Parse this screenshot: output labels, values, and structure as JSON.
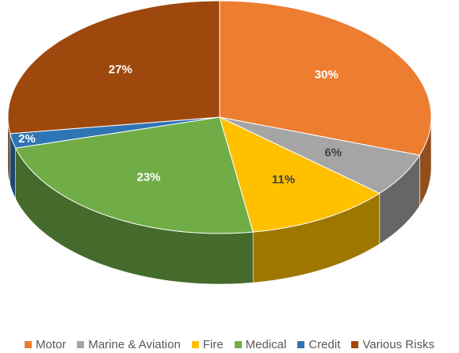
{
  "chart_data": {
    "type": "pie3d",
    "categories": [
      "Motor",
      "Marine & Aviation",
      "Fire",
      "Medical",
      "Credit",
      "Various Risks"
    ],
    "values": [
      30,
      6,
      11,
      23,
      2,
      27
    ],
    "value_labels": [
      "30%",
      "6%",
      "11%",
      "23%",
      "2%",
      "27%"
    ],
    "colors": [
      "#ed7d31",
      "#a5a5a5",
      "#ffc000",
      "#70ad47",
      "#2e75b6",
      "#9e480e"
    ],
    "legend": "bottom"
  }
}
